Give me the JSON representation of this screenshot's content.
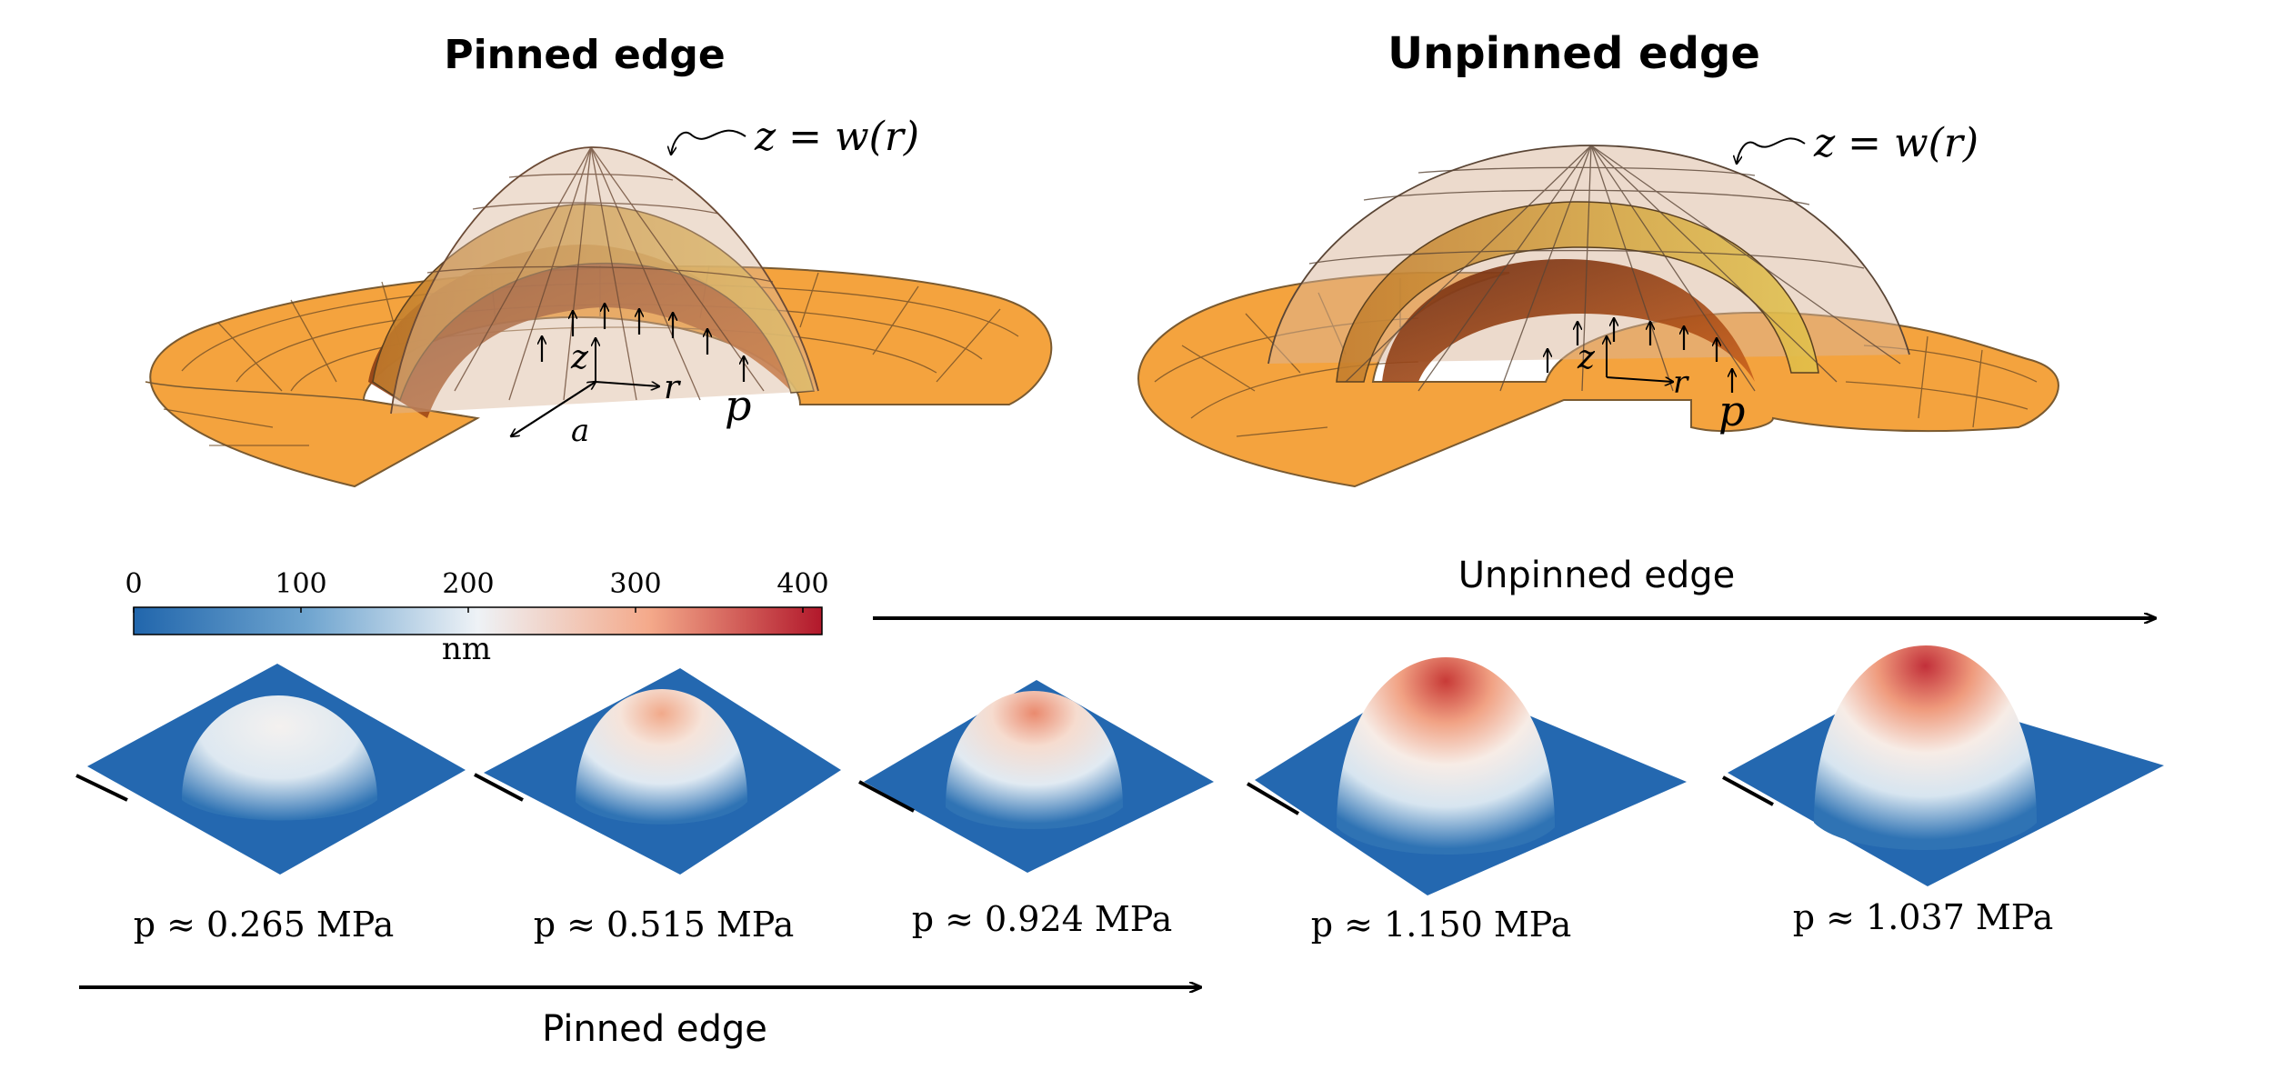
{
  "titles": {
    "pinned": "Pinned edge",
    "unpinned": "Unpinned edge"
  },
  "schematic": {
    "surface_label": "z = w(r)",
    "axis_z": "z",
    "axis_r": "r",
    "radius": "a",
    "pressure": "p"
  },
  "colorbar": {
    "ticks": [
      "0",
      "100",
      "200",
      "300",
      "400"
    ],
    "unit": "nm",
    "colors": [
      "#2166ac",
      "#6ea4cf",
      "#eef2f6",
      "#f4a98a",
      "#b2182b"
    ]
  },
  "arrows": {
    "unpinned_label": "Unpinned edge",
    "pinned_label": "Pinned edge"
  },
  "blisters": [
    {
      "label": "p ≈ 0.265 MPa",
      "max_height_nm": 200
    },
    {
      "label": "p ≈ 0.515 MPa",
      "max_height_nm": 280
    },
    {
      "label": "p ≈ 0.924 MPa",
      "max_height_nm": 300
    },
    {
      "label": "p ≈ 1.150 MPa",
      "max_height_nm": 370
    },
    {
      "label": "p ≈ 1.037 MPa",
      "max_height_nm": 390
    }
  ]
}
